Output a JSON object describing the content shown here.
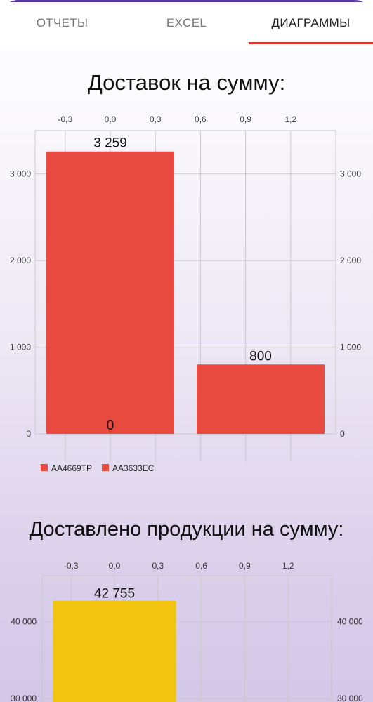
{
  "tabs": [
    {
      "label": "ОТЧЕТЫ",
      "active": false
    },
    {
      "label": "EXCEL",
      "active": false
    },
    {
      "label": "ДИАГРАММЫ",
      "active": true
    }
  ],
  "colors": {
    "accent": "#d23a32",
    "red_bar": "#e84a3f",
    "yellow_bar": "#f1c40f",
    "top_bar": "#5b3aa8"
  },
  "chart_data": [
    {
      "type": "bar",
      "title": "Доставок на сумму:",
      "top_ticks": [
        "-0,3",
        "0,0",
        "0,3",
        "0,6",
        "0,9",
        "1,2"
      ],
      "xlim": [
        -0.5,
        1.5
      ],
      "y_ticks": [
        "0",
        "1 000",
        "2 000",
        "3 000"
      ],
      "ylim": [
        0,
        3500
      ],
      "series": [
        {
          "name": "AA4669TP",
          "x": 0,
          "value": 3259,
          "value_label": "3 259",
          "base_label": "0"
        },
        {
          "name": "AA3633EC",
          "x": 1,
          "value": 800,
          "value_label": "800"
        }
      ],
      "legend_position": "bottom-left",
      "grid": true
    },
    {
      "type": "bar",
      "title": "Доставлено продукции на сумму:",
      "top_ticks": [
        "-0,3",
        "0,0",
        "0,3",
        "0,6",
        "0,9",
        "1,2"
      ],
      "xlim": [
        -0.5,
        1.5
      ],
      "y_ticks": [
        "30 000",
        "40 000"
      ],
      "ylim": [
        30000,
        46000
      ],
      "series": [
        {
          "x": 0,
          "value": 42755,
          "value_label": "42 755"
        }
      ],
      "grid": true
    }
  ]
}
